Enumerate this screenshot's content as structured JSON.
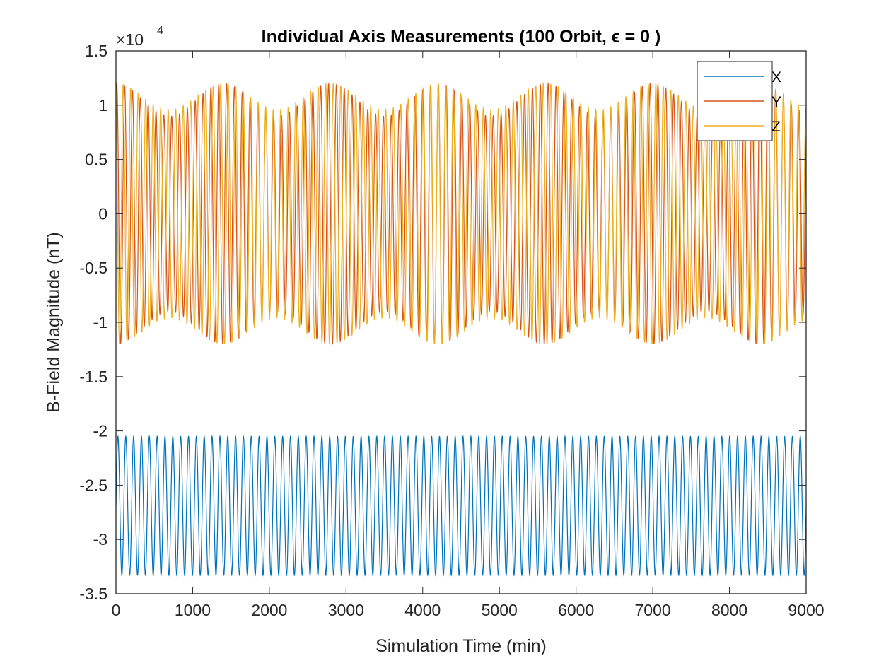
{
  "chart_data": {
    "type": "line",
    "title": "Individual Axis Measurements (100 Orbit, ϵ = 0 )",
    "xlabel": "Simulation Time (min)",
    "ylabel": "B-Field Magnitude (nT)",
    "y_multiplier": "×10",
    "y_multiplier_exponent": "4",
    "xlim": [
      0,
      9000
    ],
    "ylim": [
      -3.5,
      1.5
    ],
    "x_ticks": [
      "0",
      "1000",
      "2000",
      "3000",
      "4000",
      "5000",
      "6000",
      "7000",
      "8000",
      "9000"
    ],
    "y_ticks": [
      "-3.5",
      "-3",
      "-2.5",
      "-2",
      "-1.5",
      "-1",
      "-0.5",
      "0",
      "0.5",
      "1",
      "1.5"
    ],
    "legend_position": "top-right",
    "grid": false,
    "series": [
      {
        "name": "X",
        "color": "#0072BD",
        "min": -3.33,
        "max": -2.05,
        "cycles": 88,
        "envelope_period": 0,
        "envelope_depth": 0
      },
      {
        "name": "Y",
        "color": "#D95319",
        "min": -1.2,
        "max": 1.2,
        "cycles": 88,
        "envelope_period": 1400,
        "envelope_depth": 0.25
      },
      {
        "name": "Z",
        "color": "#EDB120",
        "min": -1.2,
        "max": 1.2,
        "cycles": 92,
        "envelope_period": 1400,
        "envelope_depth": 0.2
      }
    ]
  }
}
